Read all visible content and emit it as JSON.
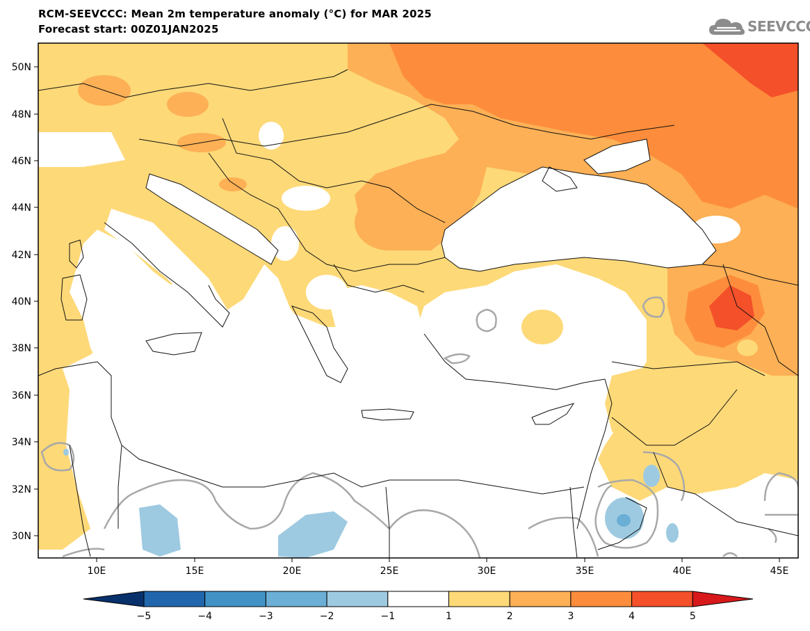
{
  "header": {
    "title": "RCM-SEEVCCC: Mean 2m temperature anomaly (°C) for MAR 2025",
    "subtitle": "Forecast start: 00Z01JAN2025",
    "logo_text": "SEEVCCC"
  },
  "map": {
    "region": "Mediterranean / Black Sea",
    "lat_ticks": [
      "50N",
      "48N",
      "46N",
      "44N",
      "42N",
      "40N",
      "38N",
      "36N",
      "34N",
      "32N",
      "30N"
    ],
    "lon_ticks": [
      "10E",
      "15E",
      "20E",
      "25E",
      "30E",
      "35E",
      "40E",
      "45E"
    ],
    "icons": [
      "cloud-logo-icon"
    ]
  },
  "colorbar": {
    "labels": [
      "−5",
      "−4",
      "−3",
      "−2",
      "−1",
      "1",
      "2",
      "3",
      "4",
      "5"
    ],
    "colors": [
      "#08306b",
      "#2166ac",
      "#4292c6",
      "#6baed6",
      "#9ecae1",
      "#ffffff",
      "#fdd978",
      "#fdb055",
      "#fd8d3c",
      "#f4502a",
      "#d7191c"
    ]
  }
}
